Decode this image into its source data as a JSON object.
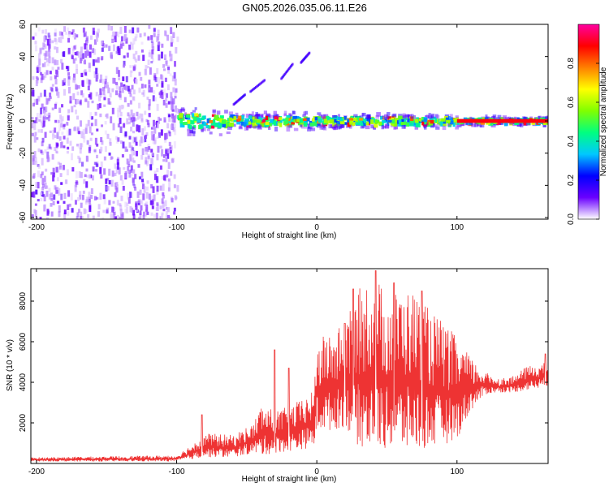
{
  "title": "GN05.2026.035.06.11.E26",
  "chart_data": [
    {
      "type": "heatmap",
      "xlabel": "Height of straight line (km)",
      "ylabel": "Frequency (Hz)",
      "xlim": [
        -204,
        165
      ],
      "ylim": [
        -61,
        60
      ],
      "xticks": [
        -200,
        -100,
        0,
        100
      ],
      "yticks": [
        60,
        40,
        20,
        0,
        -20,
        -40,
        -60
      ],
      "colorbar": {
        "label": "Normalized spectral amplitude",
        "range": [
          0,
          1
        ],
        "ticks": [
          0.0,
          0.2,
          0.4,
          0.6,
          0.8
        ],
        "colors": [
          "#ffffff",
          "#6a00ff",
          "#0000ff",
          "#00c8ff",
          "#00ff80",
          "#80ff00",
          "#ffff00",
          "#ff8000",
          "#ff0000",
          "#ff00a0"
        ]
      },
      "regions": [
        {
          "name": "noise",
          "x": [
            -204,
            -100
          ],
          "y": [
            -60,
            60
          ],
          "level": 0.1
        },
        {
          "name": "main-band",
          "x": [
            -100,
            165
          ],
          "y_center": 0,
          "level": 0.5
        },
        {
          "name": "strong-line",
          "x": [
            100,
            165
          ],
          "y_center": 0,
          "level": 0.9
        }
      ],
      "harmonic_traces": [
        {
          "x": [
            -60,
            -52
          ],
          "y": [
            10,
            16
          ]
        },
        {
          "x": [
            -48,
            -38
          ],
          "y": [
            18,
            25
          ]
        },
        {
          "x": [
            -26,
            -18
          ],
          "y": [
            26,
            35
          ]
        },
        {
          "x": [
            -12,
            -6
          ],
          "y": [
            36,
            42
          ]
        }
      ]
    },
    {
      "type": "line",
      "xlabel": "Height of straight line (km)",
      "ylabel": "SNR (10 * v/v)",
      "xlim": [
        -204,
        165
      ],
      "ylim": [
        0,
        9600
      ],
      "xticks": [
        -200,
        -100,
        0,
        100
      ],
      "yticks": [
        2000,
        4000,
        6000,
        8000
      ],
      "series": [
        {
          "name": "SNR",
          "color": "#ee3333",
          "envelope": {
            "x": [
              -204,
              -100,
              -90,
              -80,
              -60,
              -45,
              -40,
              -30,
              -20,
              -10,
              -2,
              0,
              10,
              20,
              30,
              40,
              50,
              60,
              70,
              80,
              90,
              100,
              110,
              120,
              130,
              140,
              150,
              165
            ],
            "low": [
              100,
              100,
              200,
              300,
              300,
              500,
              400,
              500,
              600,
              700,
              800,
              1600,
              1600,
              1800,
              800,
              700,
              700,
              600,
              600,
              700,
              900,
              1200,
              2600,
              3400,
              3500,
              3500,
              3600,
              3800
            ],
            "high": [
              300,
              400,
              900,
              1500,
              1400,
              2000,
              2900,
              2600,
              2800,
              3200,
              3600,
              6100,
              6500,
              6900,
              8600,
              9400,
              8400,
              8600,
              8500,
              7600,
              7000,
              6200,
              5200,
              4500,
              4200,
              4300,
              4800,
              5000
            ]
          },
          "peaks": [
            {
              "x": -82,
              "y": 2400
            },
            {
              "x": -30,
              "y": 5600
            },
            {
              "x": -20,
              "y": 4700
            },
            {
              "x": 20,
              "y": 6900
            },
            {
              "x": 26,
              "y": 8600
            },
            {
              "x": 42,
              "y": 9500
            },
            {
              "x": 55,
              "y": 8900
            },
            {
              "x": 75,
              "y": 8500
            },
            {
              "x": 163,
              "y": 5400
            }
          ]
        }
      ]
    }
  ]
}
